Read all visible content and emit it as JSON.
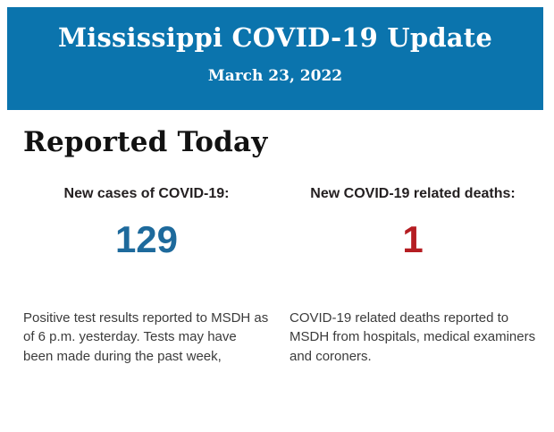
{
  "header": {
    "title": "Mississippi COVID-19 Update",
    "date": "March 23, 2022",
    "bg_color": "#0b74ad",
    "text_color": "#ffffff"
  },
  "main": {
    "heading": "Reported Today",
    "stats": [
      {
        "label": "New cases of COVID-19:",
        "value": "129",
        "value_color": "#1e6a9c",
        "description": "Positive test results reported to MSDH as of 6 p.m. yesterday. Tests may have been made during the past week,"
      },
      {
        "label": "New COVID-19 related deaths:",
        "value": "1",
        "value_color": "#b51d22",
        "description": "COVID-19 related deaths reported to MSDH from hospitals, medical examiners and coroners."
      }
    ]
  }
}
